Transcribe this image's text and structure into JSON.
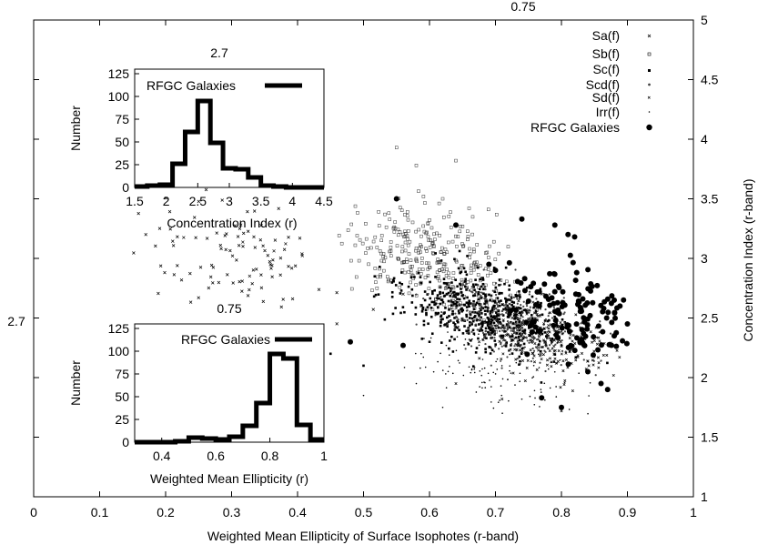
{
  "chart_data": [
    {
      "id": "main",
      "type": "scatter",
      "title": "",
      "xlabel": "Weighted Mean Ellipticity of Surface Isophotes (r-band)",
      "ylabel": "Concentration Index (r-band)",
      "xlim": [
        0,
        1
      ],
      "ylim": [
        1,
        5
      ],
      "x_ticks": [
        "0",
        "0.1",
        "0.2",
        "0.3",
        "0.4",
        "0.5",
        "0.6",
        "0.7",
        "0.8",
        "0.9",
        "1"
      ],
      "y_ticks": [
        "1",
        "1.5",
        "2",
        "2.5",
        "3",
        "3.5",
        "4",
        "4.5",
        "5"
      ],
      "y_axis_side": "right",
      "grid": false,
      "legend_position": "top-right",
      "annotations": [
        {
          "text": "0.75",
          "where": "top edge"
        },
        {
          "text": "2.7",
          "where": "left edge"
        }
      ],
      "series": [
        {
          "name": "Sa(f)",
          "marker": "x",
          "size": 3,
          "cx": 0.3,
          "cy": 3.05,
          "sx": 0.11,
          "sy": 0.35,
          "n": 110,
          "points": [
            [
              0.17,
              3.2
            ],
            [
              0.25,
              2.67
            ],
            [
              0.17,
              2.45
            ],
            [
              0.56,
              2.7
            ]
          ]
        },
        {
          "name": "Sb(f)",
          "marker": "open-square",
          "size": 3,
          "cx": 0.6,
          "cy": 3.0,
          "sx": 0.09,
          "sy": 0.28,
          "n": 320,
          "points": [
            [
              0.55,
              3.93
            ],
            [
              0.64,
              3.82
            ],
            [
              0.58,
              3.78
            ],
            [
              0.62,
              3.5
            ],
            [
              0.66,
              3.42
            ]
          ]
        },
        {
          "name": "Sc(f)",
          "marker": "dot",
          "size": 2.6,
          "cx": 0.68,
          "cy": 2.55,
          "sx": 0.085,
          "sy": 0.22,
          "n": 520,
          "points": [
            [
              0.5,
              2.1
            ],
            [
              0.45,
              2.2
            ],
            [
              0.6,
              2.3
            ]
          ]
        },
        {
          "name": "Scd(f)",
          "marker": "small-dot",
          "size": 2.2,
          "cx": 0.73,
          "cy": 2.45,
          "sx": 0.08,
          "sy": 0.2,
          "n": 380,
          "points": []
        },
        {
          "name": "Sd(f)",
          "marker": "x",
          "size": 2.6,
          "cx": 0.78,
          "cy": 2.3,
          "sx": 0.07,
          "sy": 0.2,
          "n": 240,
          "points": [
            [
              0.8,
              1.72
            ],
            [
              0.71,
              1.82
            ],
            [
              0.64,
              1.95
            ]
          ]
        },
        {
          "name": "Irr(f)",
          "marker": "tiny-dot",
          "size": 1.6,
          "cx": 0.7,
          "cy": 2.05,
          "sx": 0.09,
          "sy": 0.2,
          "n": 110,
          "points": [
            [
              0.62,
              1.75
            ],
            [
              0.5,
              1.85
            ],
            [
              0.58,
              1.95
            ]
          ]
        },
        {
          "name": "RFGC Galaxies",
          "marker": "filled-circle",
          "size": 6,
          "cx": 0.82,
          "cy": 2.55,
          "sx": 0.06,
          "sy": 0.28,
          "n": 130,
          "points": [
            [
              0.55,
              3.5
            ],
            [
              0.64,
              3.28
            ],
            [
              0.74,
              3.33
            ],
            [
              0.79,
              3.28
            ],
            [
              0.81,
              3.2
            ],
            [
              0.82,
              3.18
            ],
            [
              0.88,
              2.65
            ],
            [
              0.9,
              2.45
            ],
            [
              0.88,
              2.35
            ],
            [
              0.86,
              1.95
            ],
            [
              0.87,
              1.9
            ],
            [
              0.84,
              2.05
            ],
            [
              0.8,
              1.75
            ],
            [
              0.77,
              1.83
            ],
            [
              0.48,
              2.3
            ],
            [
              0.56,
              2.27
            ],
            [
              0.69,
              2.95
            ],
            [
              0.7,
              2.9
            ]
          ]
        }
      ]
    },
    {
      "id": "inset_concentration",
      "type": "bar",
      "title": "2.7",
      "xlabel": "Concentration Index (r)",
      "ylabel": "Number",
      "xlim": [
        1.5,
        4.5
      ],
      "ylim": [
        0,
        130
      ],
      "x_ticks": [
        "1.5",
        "2",
        "2.5",
        "3",
        "3.5",
        "4",
        "4.5"
      ],
      "y_ticks": [
        "0",
        "25",
        "50",
        "75",
        "100",
        "125"
      ],
      "bin_edges": [
        1.5,
        1.7,
        1.9,
        2.1,
        2.3,
        2.5,
        2.7,
        2.9,
        3.1,
        3.3,
        3.5,
        3.7,
        3.9,
        4.1,
        4.3,
        4.5
      ],
      "values": [
        1,
        2,
        3,
        26,
        61,
        95,
        49,
        21,
        20,
        11,
        2,
        1,
        0,
        0,
        0
      ],
      "series": [
        {
          "name": "RFGC Galaxies"
        }
      ],
      "legend_position": "top-right"
    },
    {
      "id": "inset_ellipticity",
      "type": "bar",
      "title": "0.75",
      "xlabel": "Weighted Mean Ellipticity (r)",
      "ylabel": "Number",
      "xlim": [
        0.3,
        1
      ],
      "ylim": [
        0,
        130
      ],
      "x_ticks": [
        "0.4",
        "0.6",
        "0.8",
        "1"
      ],
      "y_ticks": [
        "0",
        "25",
        "50",
        "75",
        "100",
        "125"
      ],
      "bin_edges": [
        0.3,
        0.35,
        0.4,
        0.45,
        0.5,
        0.55,
        0.6,
        0.65,
        0.7,
        0.75,
        0.8,
        0.85,
        0.9,
        0.95,
        1.0
      ],
      "values": [
        0,
        0,
        0,
        1,
        5,
        4,
        3,
        6,
        18,
        43,
        97,
        92,
        19,
        3
      ],
      "series": [
        {
          "name": "RFGC Galaxies"
        }
      ],
      "legend_position": "top-right"
    }
  ]
}
